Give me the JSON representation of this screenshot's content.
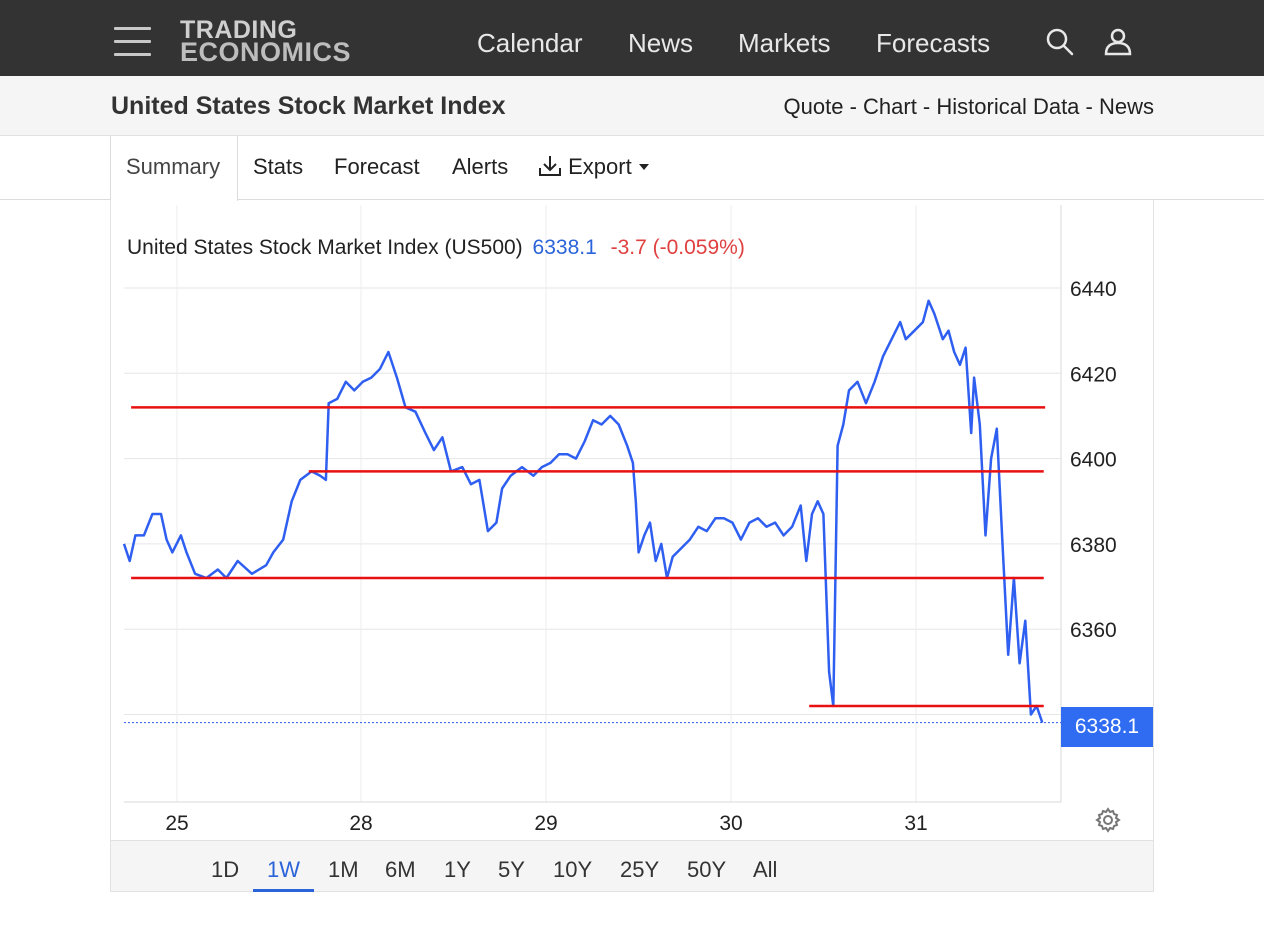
{
  "nav": {
    "logo_line1": "TRADING",
    "logo_line2": "ECONOMICS",
    "links": [
      "Calendar",
      "News",
      "Markets",
      "Forecasts"
    ],
    "icons": [
      "search-icon",
      "user-icon",
      "menu-icon"
    ]
  },
  "header": {
    "title": "United States Stock Market Index",
    "quicklinks": [
      "Quote",
      "Chart",
      "Historical Data",
      "News"
    ],
    "separator": " - "
  },
  "tabs": {
    "items": [
      "Summary",
      "Stats",
      "Forecast",
      "Alerts"
    ],
    "export_label": "Export",
    "active": "Summary"
  },
  "chart": {
    "legend_name": "United States Stock Market Index (US500)",
    "legend_price": "6338.1",
    "legend_change": "-3.7 (-0.059%)",
    "price_tag": "6338.1",
    "colors": {
      "line": "#2f5ff0",
      "annotation": "#e81010",
      "positive": "#2b63d9",
      "negative": "#e04040"
    }
  },
  "ranges": {
    "items": [
      "1D",
      "1W",
      "1M",
      "6M",
      "1Y",
      "5Y",
      "10Y",
      "25Y",
      "50Y",
      "All"
    ],
    "active": "1W"
  },
  "chart_data": {
    "type": "line",
    "title": "United States Stock Market Index (US500)",
    "xlabel": "",
    "ylabel": "",
    "x_tick_labels": [
      "25",
      "28",
      "29",
      "30",
      "31"
    ],
    "y_tick_labels": [
      "6360",
      "6380",
      "6400",
      "6420",
      "6440"
    ],
    "ylim": [
      6320,
      6460
    ],
    "grid": true,
    "last_value": 6338.1,
    "series": [
      {
        "values_by_day": [
          {
            "x": 0.0,
            "y": 6380
          },
          {
            "x": 0.04,
            "y": 6376
          },
          {
            "x": 0.08,
            "y": 6382
          },
          {
            "x": 0.14,
            "y": 6382
          },
          {
            "x": 0.2,
            "y": 6387
          },
          {
            "x": 0.26,
            "y": 6387
          },
          {
            "x": 0.3,
            "y": 6381
          },
          {
            "x": 0.34,
            "y": 6378
          },
          {
            "x": 0.4,
            "y": 6382
          },
          {
            "x": 0.44,
            "y": 6378
          },
          {
            "x": 0.5,
            "y": 6373
          },
          {
            "x": 0.58,
            "y": 6372
          },
          {
            "x": 0.66,
            "y": 6374
          },
          {
            "x": 0.72,
            "y": 6372
          },
          {
            "x": 0.8,
            "y": 6376
          },
          {
            "x": 0.9,
            "y": 6373
          },
          {
            "x": 1.0,
            "y": 6375
          },
          {
            "x": 1.05,
            "y": 6378
          },
          {
            "x": 1.12,
            "y": 6381
          },
          {
            "x": 1.18,
            "y": 6390
          },
          {
            "x": 1.24,
            "y": 6395
          },
          {
            "x": 1.32,
            "y": 6397
          },
          {
            "x": 1.38,
            "y": 6396
          },
          {
            "x": 1.42,
            "y": 6395
          },
          {
            "x": 1.44,
            "y": 6413
          },
          {
            "x": 1.5,
            "y": 6414
          },
          {
            "x": 1.56,
            "y": 6418
          },
          {
            "x": 1.62,
            "y": 6416
          },
          {
            "x": 1.68,
            "y": 6418
          },
          {
            "x": 1.74,
            "y": 6419
          },
          {
            "x": 1.8,
            "y": 6421
          },
          {
            "x": 1.86,
            "y": 6425
          },
          {
            "x": 1.92,
            "y": 6419
          },
          {
            "x": 1.98,
            "y": 6412
          },
          {
            "x": 2.05,
            "y": 6411
          },
          {
            "x": 2.12,
            "y": 6406
          },
          {
            "x": 2.18,
            "y": 6402
          },
          {
            "x": 2.24,
            "y": 6405
          },
          {
            "x": 2.3,
            "y": 6397
          },
          {
            "x": 2.38,
            "y": 6398
          },
          {
            "x": 2.44,
            "y": 6394
          },
          {
            "x": 2.5,
            "y": 6395
          },
          {
            "x": 2.56,
            "y": 6383
          },
          {
            "x": 2.62,
            "y": 6385
          },
          {
            "x": 2.66,
            "y": 6393
          },
          {
            "x": 2.72,
            "y": 6396
          },
          {
            "x": 2.8,
            "y": 6398
          },
          {
            "x": 2.88,
            "y": 6396
          },
          {
            "x": 2.94,
            "y": 6398
          },
          {
            "x": 3.0,
            "y": 6399
          },
          {
            "x": 3.06,
            "y": 6401
          },
          {
            "x": 3.12,
            "y": 6401
          },
          {
            "x": 3.18,
            "y": 6400
          },
          {
            "x": 3.24,
            "y": 6404
          },
          {
            "x": 3.3,
            "y": 6409
          },
          {
            "x": 3.36,
            "y": 6408
          },
          {
            "x": 3.42,
            "y": 6410
          },
          {
            "x": 3.48,
            "y": 6408
          },
          {
            "x": 3.54,
            "y": 6403
          },
          {
            "x": 3.58,
            "y": 6399
          },
          {
            "x": 3.6,
            "y": 6390
          },
          {
            "x": 3.62,
            "y": 6378
          },
          {
            "x": 3.66,
            "y": 6382
          },
          {
            "x": 3.7,
            "y": 6385
          },
          {
            "x": 3.74,
            "y": 6376
          },
          {
            "x": 3.78,
            "y": 6380
          },
          {
            "x": 3.82,
            "y": 6372
          },
          {
            "x": 3.86,
            "y": 6377
          },
          {
            "x": 3.92,
            "y": 6379
          },
          {
            "x": 3.98,
            "y": 6381
          },
          {
            "x": 4.04,
            "y": 6384
          },
          {
            "x": 4.1,
            "y": 6383
          },
          {
            "x": 4.16,
            "y": 6386
          },
          {
            "x": 4.22,
            "y": 6386
          },
          {
            "x": 4.28,
            "y": 6385
          },
          {
            "x": 4.34,
            "y": 6381
          },
          {
            "x": 4.4,
            "y": 6385
          },
          {
            "x": 4.46,
            "y": 6386
          },
          {
            "x": 4.52,
            "y": 6384
          },
          {
            "x": 4.58,
            "y": 6385
          },
          {
            "x": 4.64,
            "y": 6382
          },
          {
            "x": 4.7,
            "y": 6384
          },
          {
            "x": 4.76,
            "y": 6389
          },
          {
            "x": 4.8,
            "y": 6376
          },
          {
            "x": 4.84,
            "y": 6387
          },
          {
            "x": 4.88,
            "y": 6390
          },
          {
            "x": 4.92,
            "y": 6387
          },
          {
            "x": 4.96,
            "y": 6350
          },
          {
            "x": 4.99,
            "y": 6342
          },
          {
            "x": 5.02,
            "y": 6403
          },
          {
            "x": 5.06,
            "y": 6408
          },
          {
            "x": 5.1,
            "y": 6416
          },
          {
            "x": 5.16,
            "y": 6418
          },
          {
            "x": 5.22,
            "y": 6413
          },
          {
            "x": 5.28,
            "y": 6418
          },
          {
            "x": 5.34,
            "y": 6424
          },
          {
            "x": 5.4,
            "y": 6428
          },
          {
            "x": 5.46,
            "y": 6432
          },
          {
            "x": 5.5,
            "y": 6428
          },
          {
            "x": 5.56,
            "y": 6430
          },
          {
            "x": 5.62,
            "y": 6432
          },
          {
            "x": 5.66,
            "y": 6437
          },
          {
            "x": 5.7,
            "y": 6434
          },
          {
            "x": 5.76,
            "y": 6428
          },
          {
            "x": 5.8,
            "y": 6430
          },
          {
            "x": 5.84,
            "y": 6425
          },
          {
            "x": 5.88,
            "y": 6422
          },
          {
            "x": 5.92,
            "y": 6426
          },
          {
            "x": 5.96,
            "y": 6406
          },
          {
            "x": 5.98,
            "y": 6419
          },
          {
            "x": 6.02,
            "y": 6408
          },
          {
            "x": 6.06,
            "y": 6382
          },
          {
            "x": 6.1,
            "y": 6400
          },
          {
            "x": 6.14,
            "y": 6407
          },
          {
            "x": 6.18,
            "y": 6380
          },
          {
            "x": 6.22,
            "y": 6354
          },
          {
            "x": 6.26,
            "y": 6372
          },
          {
            "x": 6.3,
            "y": 6352
          },
          {
            "x": 6.34,
            "y": 6362
          },
          {
            "x": 6.38,
            "y": 6340
          },
          {
            "x": 6.42,
            "y": 6342
          },
          {
            "x": 6.46,
            "y": 6338.1
          }
        ]
      }
    ],
    "annotations": [
      {
        "type": "hline",
        "y": 6412,
        "x_start": 0.05,
        "x_end": 6.48
      },
      {
        "type": "hline",
        "y": 6397,
        "x_start": 1.3,
        "x_end": 6.47
      },
      {
        "type": "hline",
        "y": 6372,
        "x_start": 0.05,
        "x_end": 6.47
      },
      {
        "type": "hline",
        "y": 6342,
        "x_start": 4.82,
        "x_end": 6.47
      }
    ]
  }
}
